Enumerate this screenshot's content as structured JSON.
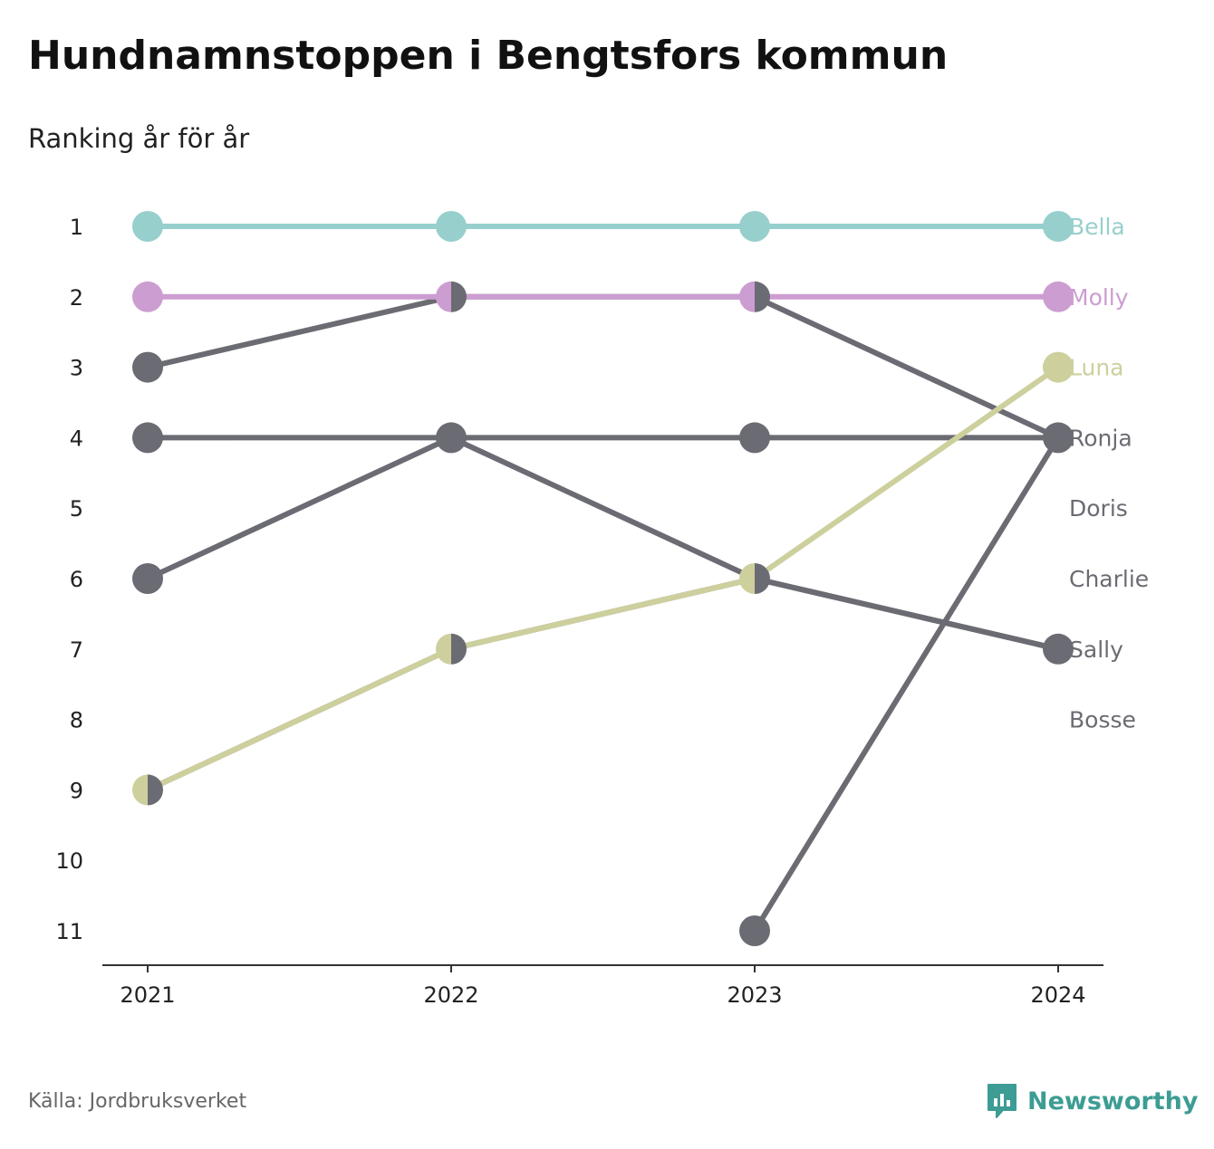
{
  "header": {
    "title": "Hundnamnstoppen i Bengtsfors kommun",
    "subtitle": "Ranking år för år"
  },
  "footer": {
    "source": "Källa: Jordbruksverket",
    "brand": "Newsworthy",
    "brand_color": "#3d9c94",
    "brand_icon": "bar-chart-speech-bubble-icon"
  },
  "chart_data": {
    "type": "line",
    "x": [
      "2021",
      "2022",
      "2023",
      "2024"
    ],
    "y_ticks": [
      "1",
      "2",
      "3",
      "4",
      "5",
      "6",
      "7",
      "8",
      "9",
      "10",
      "11"
    ],
    "ylim": [
      1,
      11
    ],
    "y_inverted": true,
    "grid": false,
    "legend": "direct labels at right end",
    "series": [
      {
        "name": "Bella",
        "values": [
          1,
          1,
          1,
          1
        ],
        "color": "#97cfcd",
        "label_color": "#97cfcd"
      },
      {
        "name": "Molly",
        "values": [
          2,
          2,
          2,
          2
        ],
        "color": "#cc9dd1",
        "label_color": "#cc9dd1"
      },
      {
        "name": "Luna",
        "values": [
          9,
          7,
          6,
          3
        ],
        "color": "#cdd09d",
        "label_color": "#cdd09d"
      },
      {
        "name": "Ronja",
        "values": [
          4,
          4,
          4,
          4
        ],
        "color": "#6b6b73",
        "label_color": "#6b6b73"
      },
      {
        "name": "Doris",
        "values": [
          3,
          2,
          2,
          4
        ],
        "color": "#6b6b73",
        "label_color": "#6b6b73"
      },
      {
        "name": "Charlie",
        "values": [
          6,
          4,
          6,
          7
        ],
        "color": "#6b6b73",
        "label_color": "#6b6b73"
      },
      {
        "name": "Sally",
        "values": [
          9,
          7,
          6,
          7
        ],
        "color": "#6b6b73",
        "label_color": "#6b6b73"
      },
      {
        "name": "Bosse",
        "values": [
          null,
          null,
          11,
          4
        ],
        "color": "#6b6b73",
        "label_color": "#6b6b73"
      }
    ],
    "right_labels": [
      "Bella",
      "Molly",
      "Luna",
      "Ronja",
      "Doris",
      "Charlie",
      "Sally",
      "Bosse"
    ],
    "right_label_ranks": [
      1,
      2,
      3,
      4,
      5,
      6,
      7,
      8
    ]
  }
}
